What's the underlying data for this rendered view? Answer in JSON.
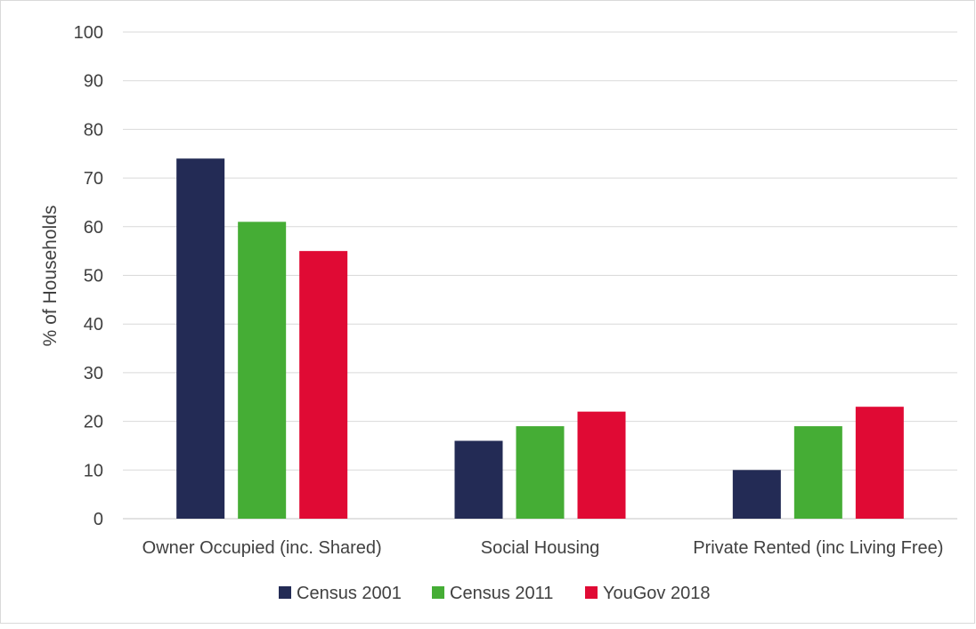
{
  "chart_data": {
    "type": "bar",
    "title": "",
    "xlabel": "",
    "ylabel": "% of Households",
    "ylim": [
      0,
      100
    ],
    "yticks": [
      0,
      10,
      20,
      30,
      40,
      50,
      60,
      70,
      80,
      90,
      100
    ],
    "grid": true,
    "legend_position": "bottom",
    "categories": [
      "Owner Occupied (inc. Shared)",
      "Social Housing",
      "Private Rented (inc Living Free)"
    ],
    "series": [
      {
        "name": "Census 2001",
        "color": "#232b55",
        "values": [
          74,
          16,
          10
        ]
      },
      {
        "name": "Census 2011",
        "color": "#45ad35",
        "values": [
          61,
          19,
          19
        ]
      },
      {
        "name": "YouGov 2018",
        "color": "#e00a34",
        "values": [
          55,
          22,
          23
        ]
      }
    ]
  }
}
